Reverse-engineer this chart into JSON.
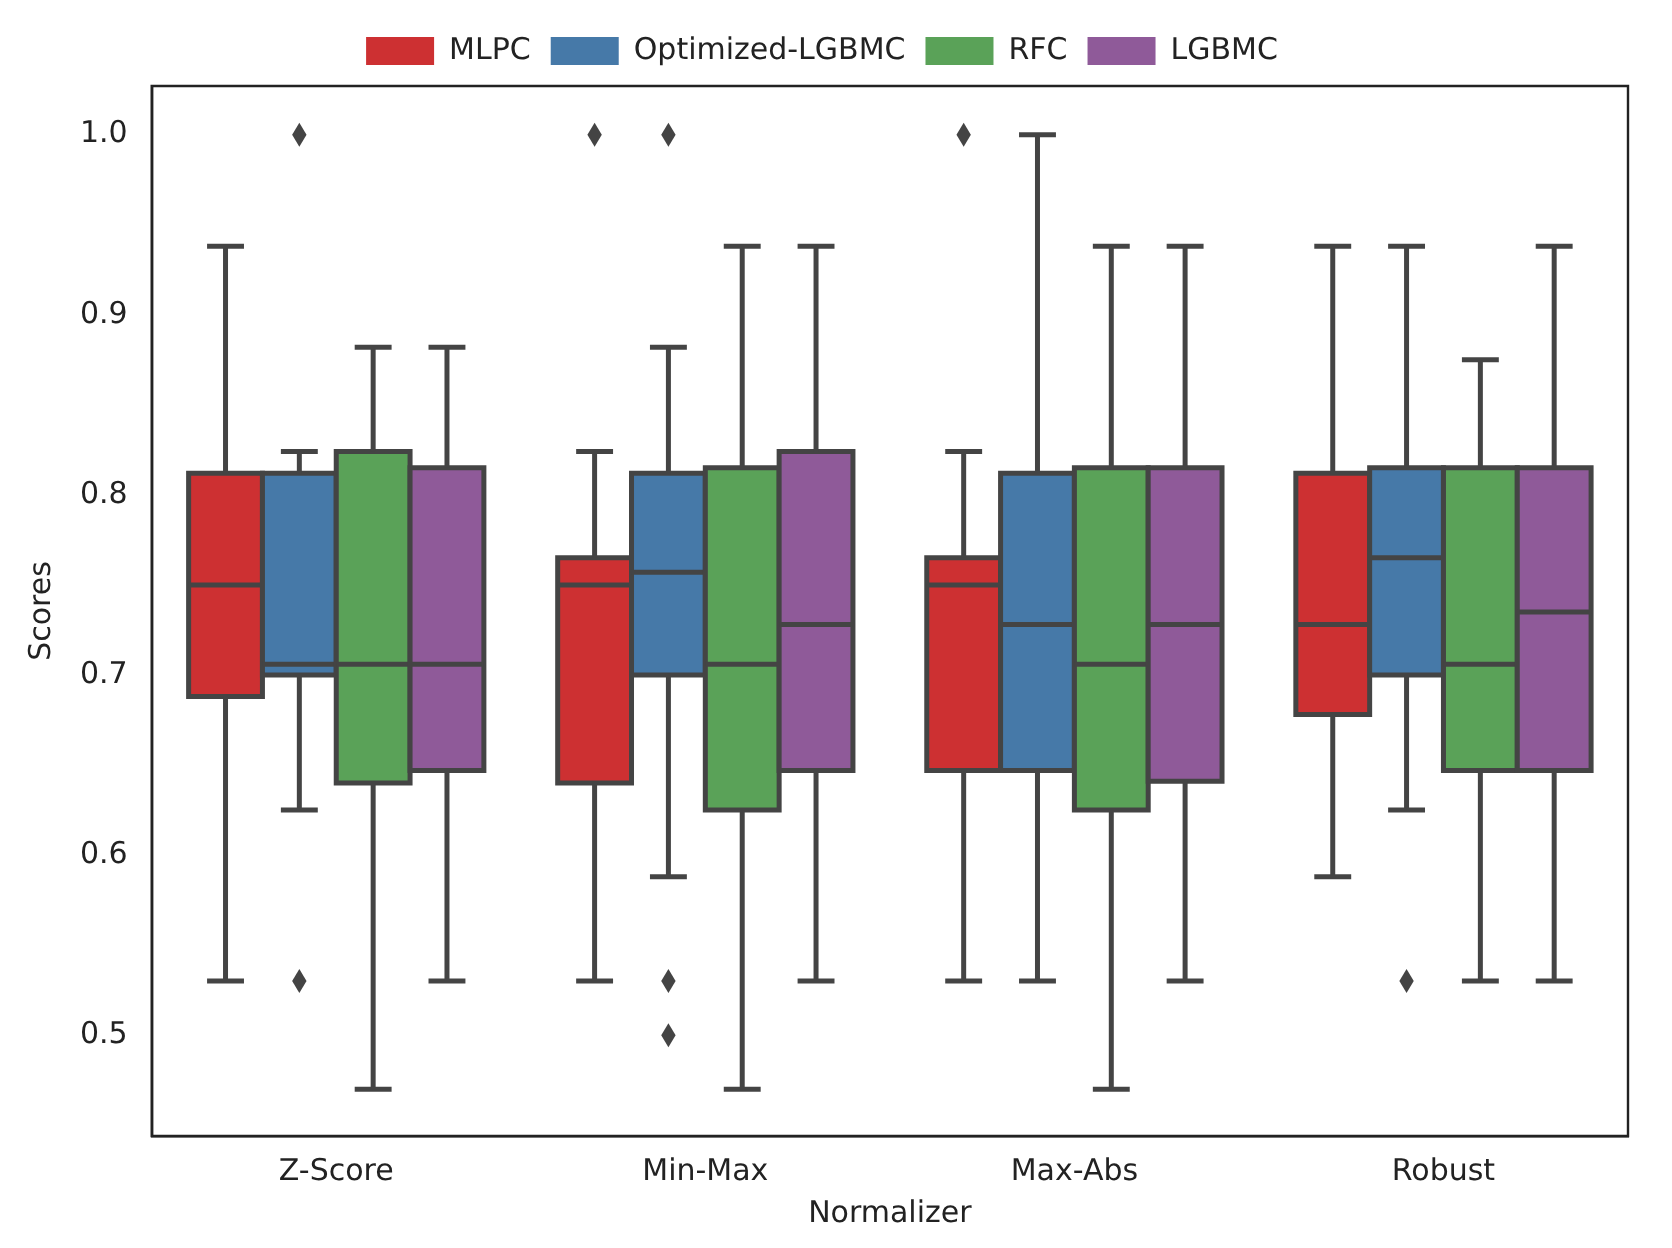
{
  "chart_data": {
    "type": "box",
    "xlabel": "Normalizer",
    "ylabel": "Scores",
    "categories": [
      "Z-Score",
      "Min-Max",
      "Max-Abs",
      "Robust"
    ],
    "ylim": [
      0.444,
      1.027
    ],
    "yticks": [
      0.5,
      0.6,
      0.7,
      0.8,
      0.9,
      {
        "value": 1.0,
        "label": "1.0"
      }
    ],
    "grid": false,
    "legend": "top",
    "marker": "diamond",
    "series": [
      {
        "name": "MLPC",
        "color": "#cd3032",
        "boxes": [
          {
            "low": 0.53,
            "q1": 0.688,
            "median": 0.75,
            "q3": 0.812,
            "high": 0.938
          },
          {
            "low": 0.53,
            "q1": 0.64,
            "median": 0.75,
            "q3": 0.765,
            "high": 0.824,
            "outliers": [
              1.0
            ]
          },
          {
            "low": 0.53,
            "q1": 0.647,
            "median": 0.75,
            "q3": 0.765,
            "high": 0.824,
            "outliers": [
              1.0
            ]
          },
          {
            "low": 0.588,
            "q1": 0.678,
            "median": 0.728,
            "q3": 0.812,
            "high": 0.938
          }
        ]
      },
      {
        "name": "Optimized-LGBMC",
        "color": "#4679a8",
        "boxes": [
          {
            "low": 0.625,
            "q1": 0.7,
            "median": 0.706,
            "q3": 0.812,
            "high": 0.824,
            "outliers": [
              1.0,
              0.53
            ]
          },
          {
            "low": 0.588,
            "q1": 0.7,
            "median": 0.757,
            "q3": 0.812,
            "high": 0.882,
            "outliers": [
              1.0,
              0.53,
              0.5
            ]
          },
          {
            "low": 0.53,
            "q1": 0.647,
            "median": 0.728,
            "q3": 0.812,
            "high": 1.0
          },
          {
            "low": 0.625,
            "q1": 0.7,
            "median": 0.765,
            "q3": 0.815,
            "high": 0.938,
            "outliers": [
              0.53
            ]
          }
        ]
      },
      {
        "name": "RFC",
        "color": "#5aa258",
        "boxes": [
          {
            "low": 0.47,
            "q1": 0.64,
            "median": 0.706,
            "q3": 0.824,
            "high": 0.882
          },
          {
            "low": 0.47,
            "q1": 0.625,
            "median": 0.706,
            "q3": 0.815,
            "high": 0.938
          },
          {
            "low": 0.47,
            "q1": 0.625,
            "median": 0.706,
            "q3": 0.815,
            "high": 0.938
          },
          {
            "low": 0.53,
            "q1": 0.647,
            "median": 0.706,
            "q3": 0.815,
            "high": 0.875
          }
        ]
      },
      {
        "name": "LGBMC",
        "color": "#8f5a99",
        "boxes": [
          {
            "low": 0.53,
            "q1": 0.647,
            "median": 0.706,
            "q3": 0.815,
            "high": 0.882
          },
          {
            "low": 0.53,
            "q1": 0.647,
            "median": 0.728,
            "q3": 0.824,
            "high": 0.938
          },
          {
            "low": 0.53,
            "q1": 0.641,
            "median": 0.728,
            "q3": 0.815,
            "high": 0.938
          },
          {
            "low": 0.53,
            "q1": 0.647,
            "median": 0.735,
            "q3": 0.815,
            "high": 0.938
          }
        ]
      }
    ]
  }
}
